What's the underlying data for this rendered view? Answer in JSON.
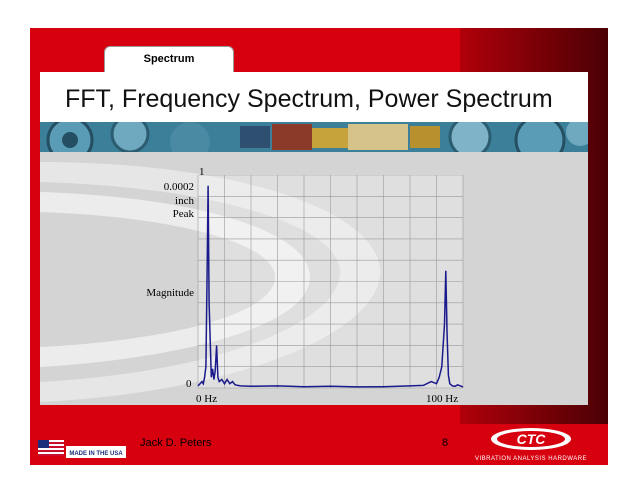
{
  "slide": {
    "tab_label": "Spectrum",
    "title": "FFT, Frequency Spectrum, Power Spectrum",
    "footer_author": "Jack D. Peters",
    "footer_page": "8",
    "left_logo_text": "MADE IN THE USA",
    "right_logo_text": "CTC",
    "right_logo_subtitle": "Vibration Analysis Hardware"
  },
  "colors": {
    "slide_red": "#d7000f",
    "trace": "#1a1a8c",
    "grid": "#9a9a9a"
  },
  "chart_data": {
    "type": "line",
    "title": "",
    "x_tick_labels": [
      "0  Hz",
      "100  Hz"
    ],
    "y_top_tick": "1",
    "y_unit_lines": [
      "0.0002",
      "inch",
      "Peak"
    ],
    "ylabel": "Magnitude",
    "y_bottom_tick": "0",
    "xlim": [
      0,
      100
    ],
    "ylim": [
      0,
      1
    ],
    "grid": true,
    "series": [
      {
        "x": [
          0,
          1.5,
          2,
          2.5,
          3,
          3.4,
          3.8,
          4.2,
          5.0,
          5.5,
          6.0,
          6.5,
          7.0,
          7.5,
          8.0,
          9.0,
          10.0,
          11.0,
          12.0,
          13.0,
          14.0,
          16,
          20,
          30,
          40,
          50,
          60,
          70,
          80,
          85,
          88,
          90,
          91,
          92,
          93,
          93.5,
          94,
          94.5,
          95,
          96,
          97,
          98,
          99,
          100
        ],
        "y": [
          0.01,
          0.03,
          0.02,
          0.05,
          0.1,
          0.5,
          0.95,
          0.4,
          0.05,
          0.09,
          0.04,
          0.08,
          0.2,
          0.05,
          0.03,
          0.04,
          0.02,
          0.04,
          0.02,
          0.03,
          0.015,
          0.01,
          0.008,
          0.01,
          0.006,
          0.008,
          0.005,
          0.006,
          0.01,
          0.012,
          0.03,
          0.02,
          0.05,
          0.1,
          0.3,
          0.55,
          0.25,
          0.06,
          0.02,
          0.01,
          0.008,
          0.015,
          0.01,
          0.005
        ]
      }
    ]
  }
}
